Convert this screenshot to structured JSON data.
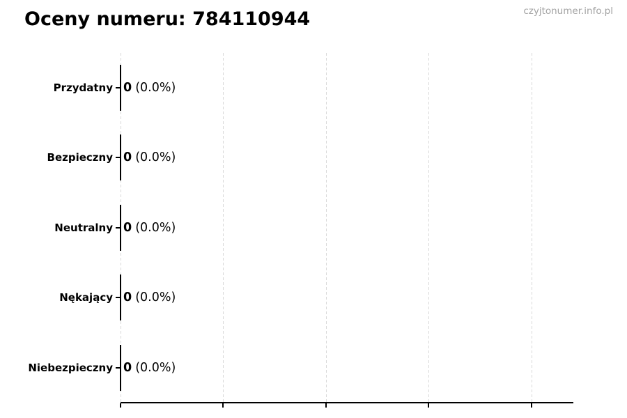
{
  "page": {
    "title": "Oceny numeru: 784110944",
    "watermark": "czyjtonumer.info.pl"
  },
  "chart_data": {
    "type": "bar",
    "orientation": "horizontal",
    "title": "Oceny numeru: 784110944",
    "categories": [
      "Przydatny",
      "Bezpieczny",
      "Neutralny",
      "Nękający",
      "Niebezpieczny"
    ],
    "values": [
      0,
      0,
      0,
      0,
      0
    ],
    "pct_labels": [
      "(0.0%)",
      "(0.0%)",
      "(0.0%)",
      "(0.0%)",
      "(0.0%)"
    ],
    "value_label_format": "value (percent)",
    "xlabel": "",
    "ylabel": "",
    "xlim": [
      0,
      1.1
    ],
    "xticks": [
      0,
      0.25,
      0.5,
      0.75,
      1.0
    ],
    "xtick_labels_visible": false,
    "grid": "vertical-dashed",
    "legend": "none",
    "colors": {
      "text": "#000000",
      "watermark": "#a3a3a3",
      "gridline": "#d9d9d9",
      "axis": "#000000",
      "bar_edge": "#000000",
      "background": "#ffffff"
    }
  }
}
